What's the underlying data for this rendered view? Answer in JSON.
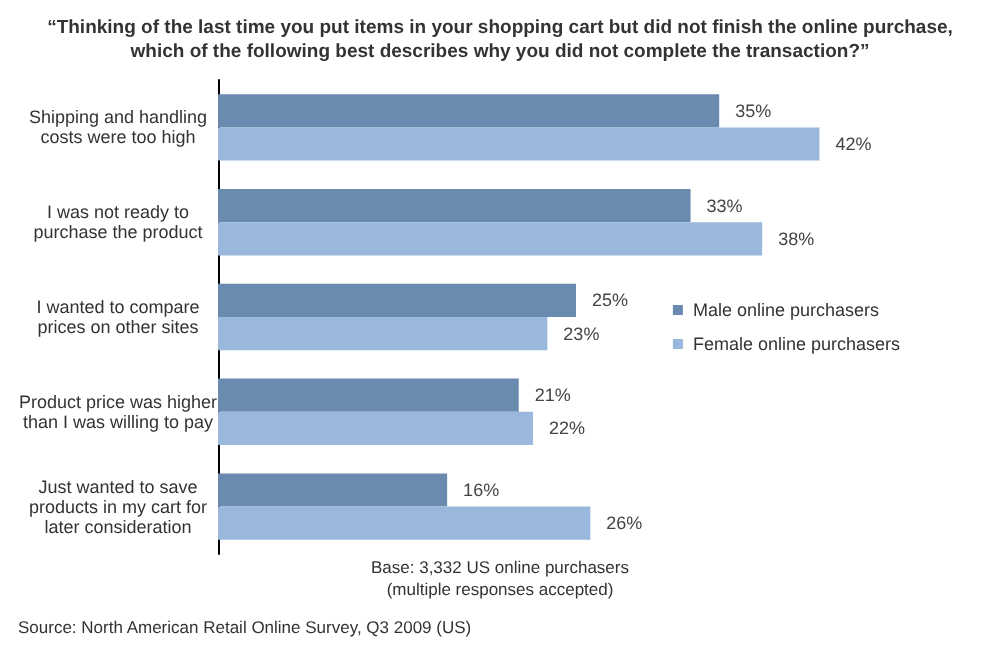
{
  "chart_data": {
    "type": "bar",
    "orientation": "horizontal",
    "title": "“Thinking of the last time you put items in your shopping cart but did not finish the online purchase,\nwhich of the following best describes why you did not complete the transaction?”",
    "categories": [
      "Shipping and handling\ncosts were too high",
      "I was not ready to\npurchase the product",
      "I wanted to compare\nprices on other sites",
      "Product price was higher\nthan I was willing to pay",
      "Just wanted to save\nproducts in my cart for\nlater consideration"
    ],
    "series": [
      {
        "name": "Male online purchasers",
        "color": "#6a8ab0",
        "values": [
          35,
          33,
          25,
          21,
          16
        ],
        "value_labels": [
          "35%",
          "33%",
          "25%",
          "21%",
          "16%"
        ]
      },
      {
        "name": "Female online purchasers",
        "color": "#9ab8dc",
        "values": [
          42,
          38,
          23,
          22,
          26
        ],
        "value_labels": [
          "42%",
          "38%",
          "23%",
          "22%",
          "26%"
        ]
      }
    ],
    "legend": "right",
    "grid": false,
    "annotations": [
      "Base: 3,332 US online purchasers\n(multiple responses accepted)",
      "Source: North American Retail Online Survey, Q3 2009 (US)"
    ]
  }
}
